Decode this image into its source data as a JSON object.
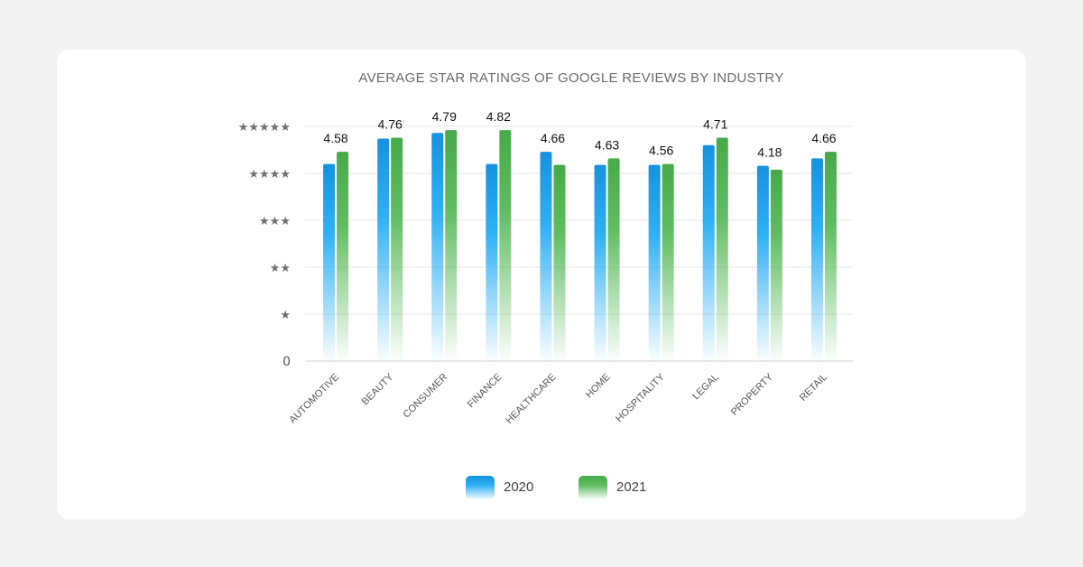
{
  "chart_data": {
    "type": "bar",
    "title": "AVERAGE STAR RATINGS OF GOOGLE REVIEWS BY INDUSTRY",
    "categories": [
      "AUTOMOTIVE",
      "BEAUTY",
      "CONSUMER",
      "FINANCE",
      "HEALTHCARE",
      "HOME",
      "HOSPITALITY",
      "LEGAL",
      "PROPERTY",
      "RETAIL"
    ],
    "series": [
      {
        "name": "2020",
        "values": [
          4.2,
          4.74,
          4.86,
          4.2,
          4.46,
          4.18,
          4.18,
          4.6,
          4.16,
          4.32
        ],
        "color": "#1a9be6"
      },
      {
        "name": "2021",
        "values": [
          4.46,
          4.76,
          4.92,
          4.92,
          4.18,
          4.32,
          4.2,
          4.76,
          4.08,
          4.46
        ],
        "color": "#4caf50"
      }
    ],
    "data_labels": [
      "4.58",
      "4.76",
      "4.79",
      "4.82",
      "4.66",
      "4.63",
      "4.56",
      "4.71",
      "4.18",
      "4.66"
    ],
    "y_ticks": [
      {
        "value": 0,
        "label": "0"
      },
      {
        "value": 1,
        "label": "★"
      },
      {
        "value": 2,
        "label": "★★"
      },
      {
        "value": 3,
        "label": "★★★"
      },
      {
        "value": 4,
        "label": "★★★★"
      },
      {
        "value": 5,
        "label": "★★★★★"
      }
    ],
    "ylim": [
      0,
      5
    ],
    "xlabel": "",
    "ylabel": "",
    "grid": true,
    "legend": "bottom-center"
  }
}
